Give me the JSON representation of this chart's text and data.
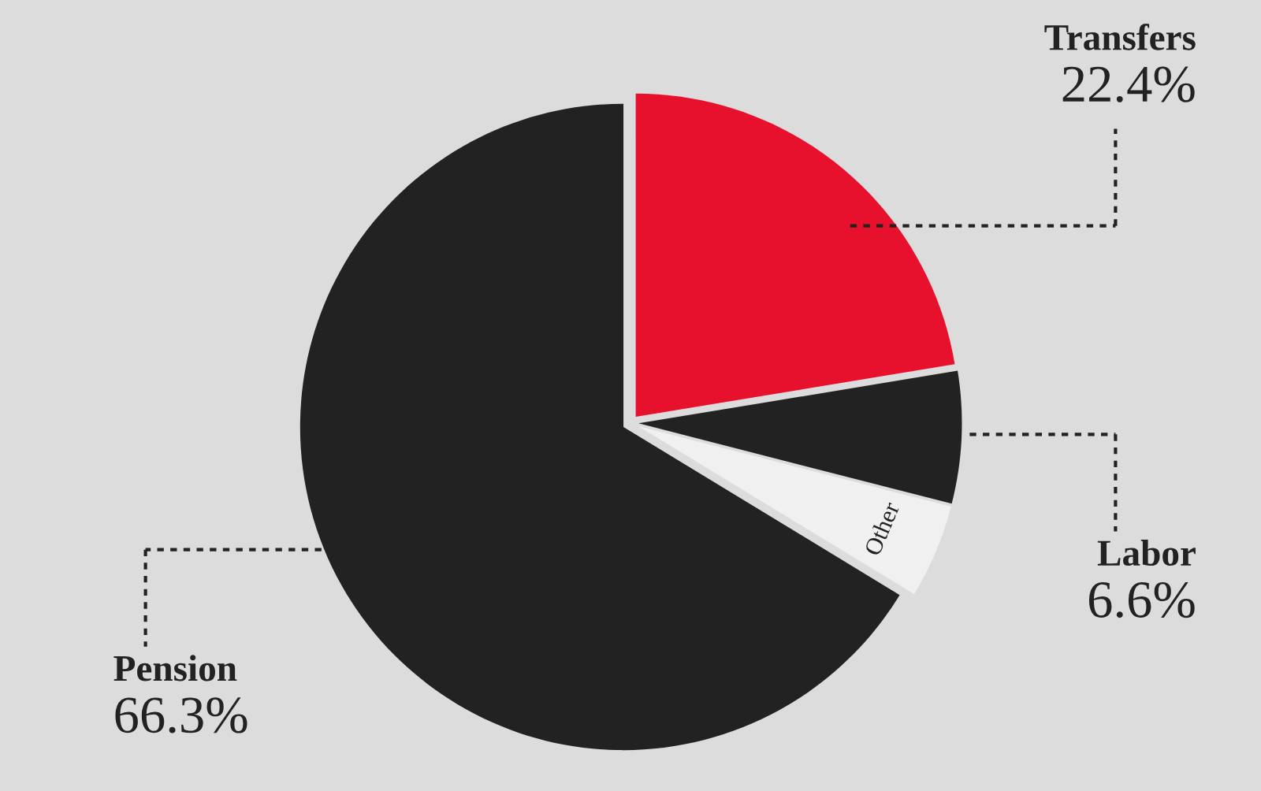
{
  "chart_data": {
    "type": "pie",
    "categories": [
      "Transfers",
      "Labor",
      "Other",
      "Pension"
    ],
    "values": [
      22.4,
      6.6,
      4.7,
      66.3
    ],
    "colors": [
      "#e8112d",
      "#222222",
      "#f0f0f0",
      "#222222"
    ],
    "value_labels": [
      "22.4%",
      "6.6%",
      null,
      "66.3%"
    ]
  }
}
